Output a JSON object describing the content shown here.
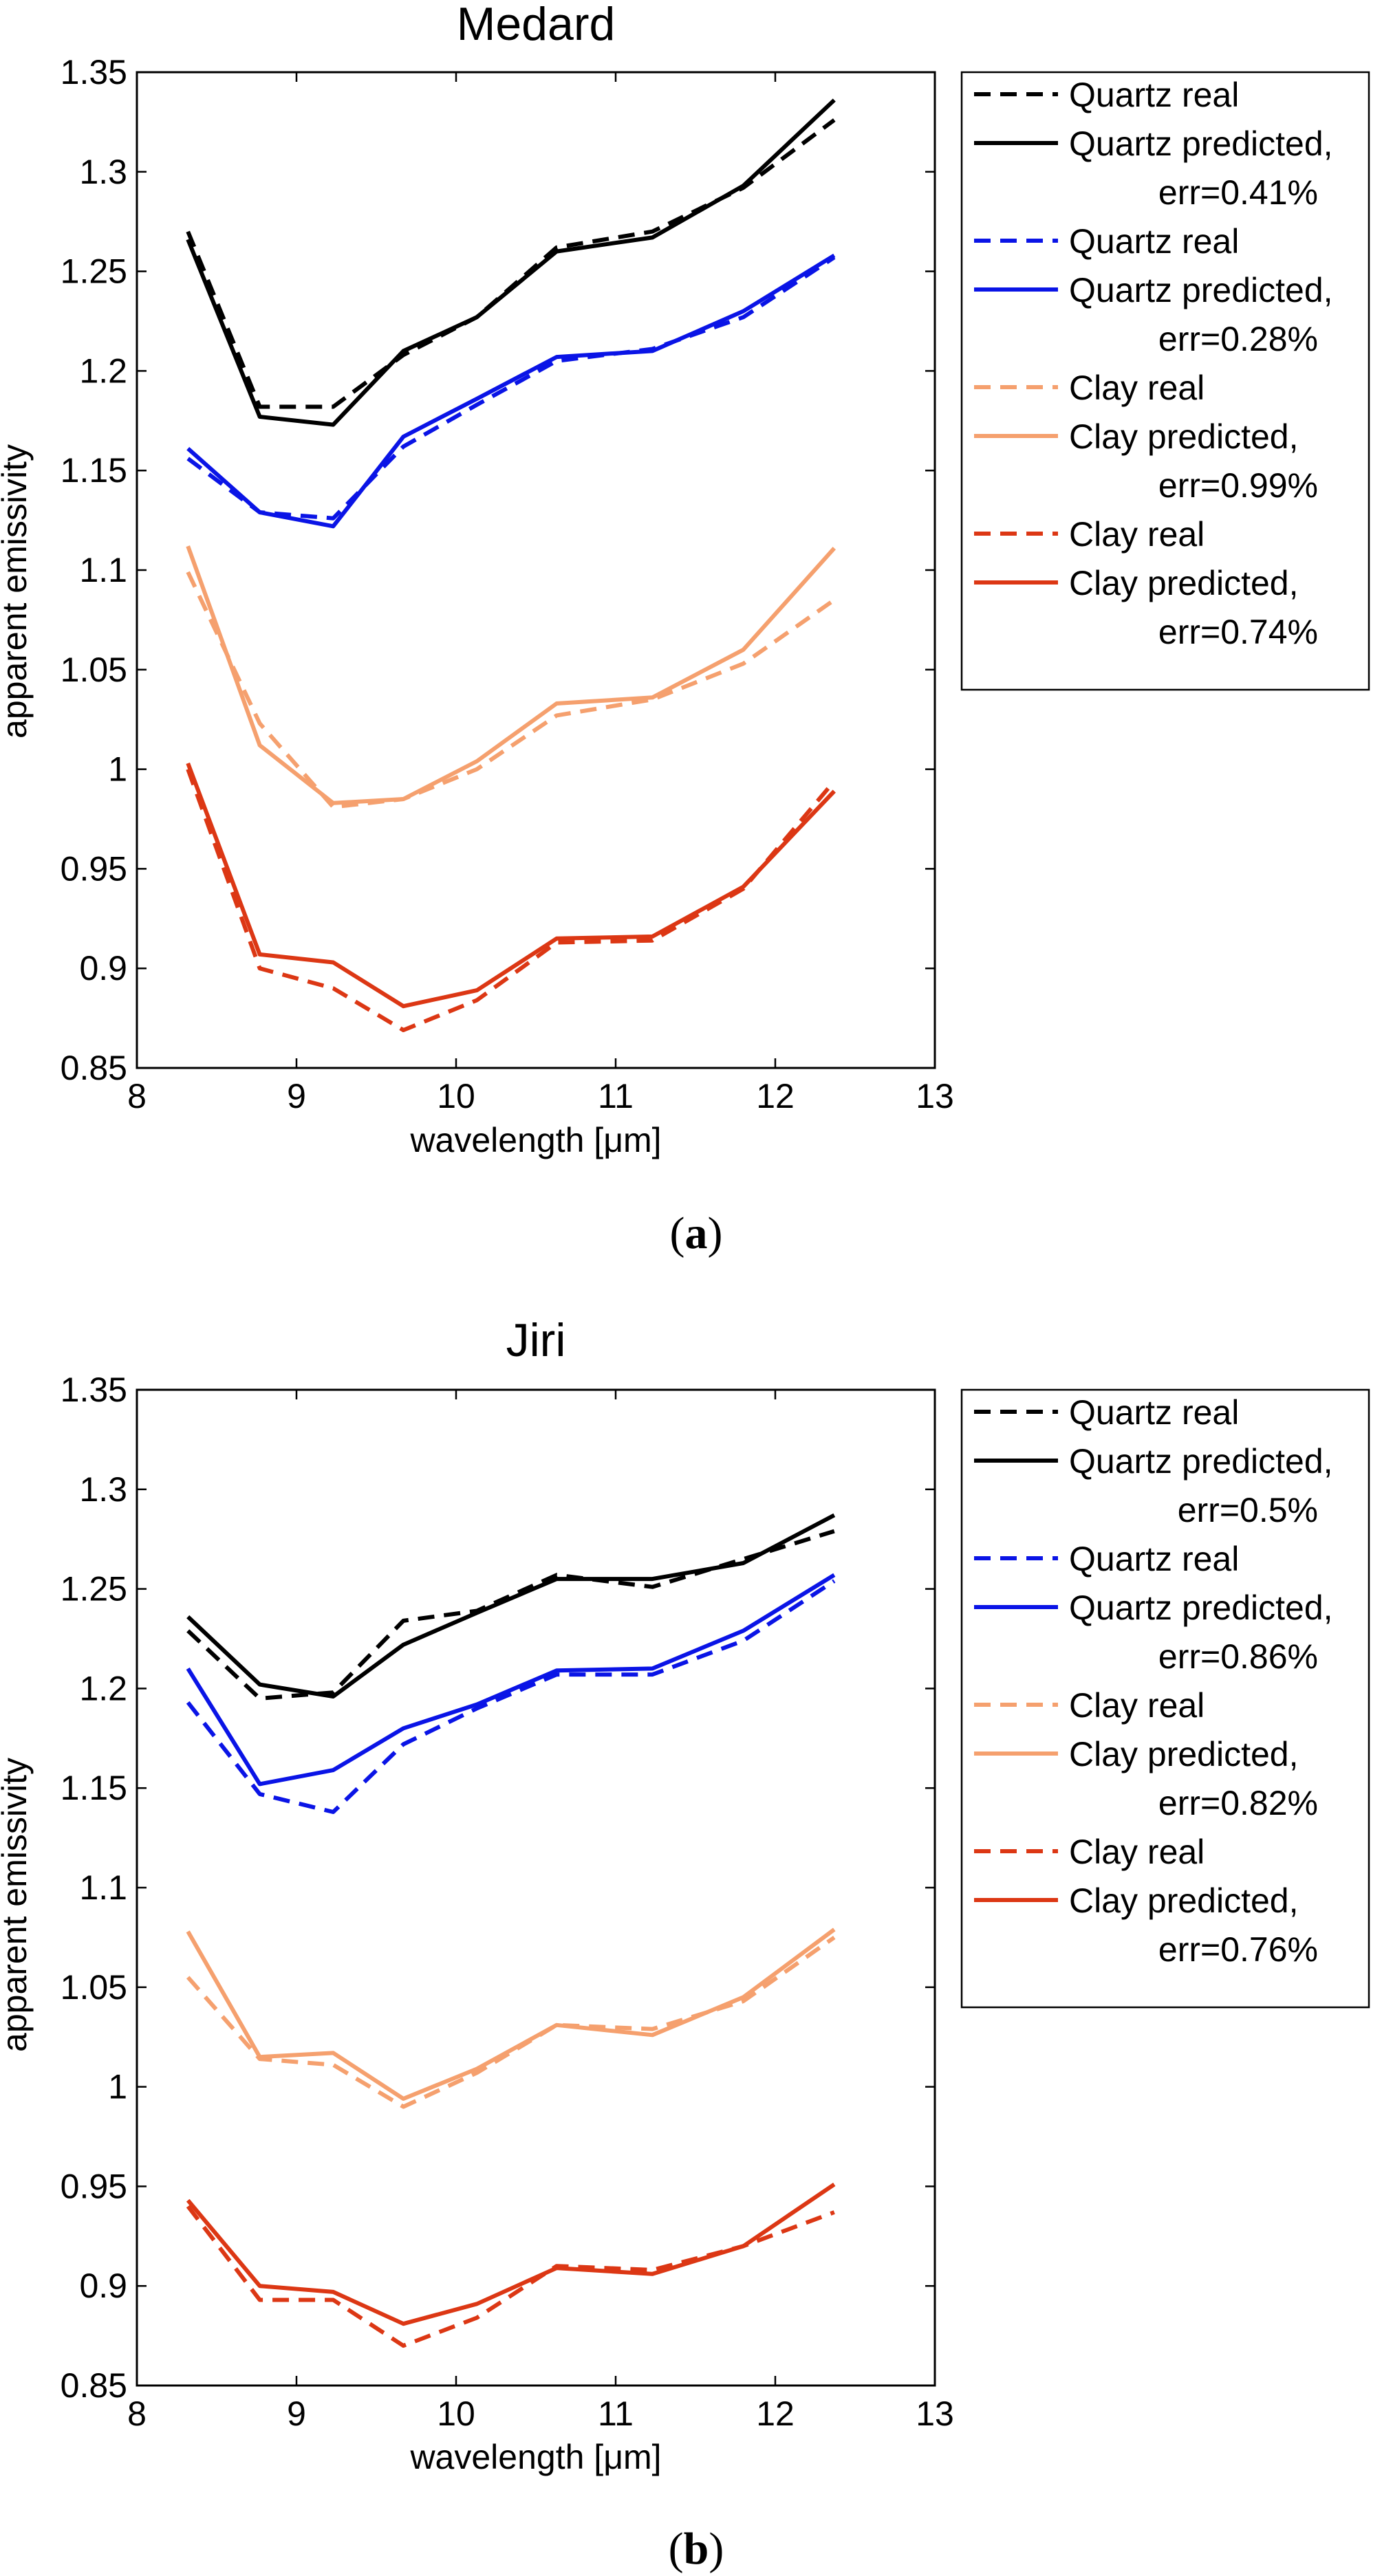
{
  "chart_data": [
    {
      "type": "line",
      "panel_label": "a",
      "title": "Medard",
      "xlabel": "wavelength [μm]",
      "ylabel": "apparent emissivity",
      "xlim": [
        8,
        13
      ],
      "ylim": [
        0.85,
        1.35
      ],
      "xticks": [
        "8",
        "9",
        "10",
        "11",
        "12",
        "13"
      ],
      "yticks": [
        "0.85",
        "0.9",
        "0.95",
        "1",
        "1.05",
        "1.1",
        "1.15",
        "1.2",
        "1.25",
        "1.3",
        "1.35"
      ],
      "grid": false,
      "legend_position": "outside-right",
      "x": [
        8.32,
        8.77,
        9.23,
        9.67,
        10.13,
        10.63,
        11.23,
        11.8,
        12.37
      ],
      "series": [
        {
          "name": "Quartz real",
          "line1": "Quartz real",
          "line2": "",
          "color": "#000000",
          "dashed": true,
          "values": [
            1.27,
            1.182,
            1.182,
            1.208,
            1.227,
            1.262,
            1.27,
            1.292,
            1.326
          ]
        },
        {
          "name": "Quartz predicted, err=0.41%",
          "line1": "Quartz predicted,",
          "line2": "err=0.41%",
          "color": "#000000",
          "dashed": false,
          "values": [
            1.266,
            1.177,
            1.173,
            1.21,
            1.227,
            1.26,
            1.267,
            1.293,
            1.336
          ]
        },
        {
          "name": "Quartz real",
          "line1": "Quartz real",
          "line2": "",
          "color": "#0a14e6",
          "dashed": true,
          "values": [
            1.156,
            1.129,
            1.126,
            1.162,
            1.183,
            1.205,
            1.211,
            1.227,
            1.257
          ]
        },
        {
          "name": "Quartz predicted, err=0.28%",
          "line1": "Quartz predicted,",
          "line2": "err=0.28%",
          "color": "#0a14e6",
          "dashed": false,
          "values": [
            1.161,
            1.129,
            1.122,
            1.167,
            1.186,
            1.207,
            1.21,
            1.23,
            1.258
          ]
        },
        {
          "name": "Clay real",
          "line1": "Clay real",
          "line2": "",
          "color": "#f5a06e",
          "dashed": true,
          "values": [
            1.099,
            1.023,
            0.981,
            0.985,
            1.0,
            1.027,
            1.035,
            1.053,
            1.085
          ]
        },
        {
          "name": "Clay predicted, err=0.99%",
          "line1": "Clay predicted,",
          "line2": "err=0.99%",
          "color": "#f5a06e",
          "dashed": false,
          "values": [
            1.112,
            1.012,
            0.983,
            0.985,
            1.004,
            1.033,
            1.036,
            1.06,
            1.111
          ]
        },
        {
          "name": "Clay real",
          "line1": "Clay real",
          "line2": "",
          "color": "#dc3714",
          "dashed": true,
          "values": [
            1.0,
            0.9,
            0.89,
            0.869,
            0.884,
            0.913,
            0.914,
            0.94,
            0.994
          ]
        },
        {
          "name": "Clay predicted, err=0.74%",
          "line1": "Clay predicted,",
          "line2": "err=0.74%",
          "color": "#dc3714",
          "dashed": false,
          "values": [
            1.003,
            0.907,
            0.903,
            0.881,
            0.889,
            0.915,
            0.916,
            0.941,
            0.989
          ]
        }
      ]
    },
    {
      "type": "line",
      "panel_label": "b",
      "title": "Jiri",
      "xlabel": "wavelength [μm]",
      "ylabel": "apparent emissivity",
      "xlim": [
        8,
        13
      ],
      "ylim": [
        0.85,
        1.35
      ],
      "xticks": [
        "8",
        "9",
        "10",
        "11",
        "12",
        "13"
      ],
      "yticks": [
        "0.85",
        "0.9",
        "0.95",
        "1",
        "1.05",
        "1.1",
        "1.15",
        "1.2",
        "1.25",
        "1.3",
        "1.35"
      ],
      "grid": false,
      "legend_position": "outside-right",
      "x": [
        8.32,
        8.77,
        9.23,
        9.67,
        10.13,
        10.63,
        11.23,
        11.8,
        12.37
      ],
      "series": [
        {
          "name": "Quartz real",
          "line1": "Quartz real",
          "line2": "",
          "color": "#000000",
          "dashed": true,
          "values": [
            1.229,
            1.195,
            1.198,
            1.234,
            1.239,
            1.257,
            1.251,
            1.265,
            1.279
          ]
        },
        {
          "name": "Quartz predicted, err=0.5%",
          "line1": "Quartz predicted,",
          "line2": "err=0.5%",
          "color": "#000000",
          "dashed": false,
          "values": [
            1.236,
            1.202,
            1.196,
            1.222,
            1.238,
            1.255,
            1.255,
            1.263,
            1.287
          ]
        },
        {
          "name": "Quartz real",
          "line1": "Quartz real",
          "line2": "",
          "color": "#0a14e6",
          "dashed": true,
          "values": [
            1.193,
            1.147,
            1.138,
            1.172,
            1.19,
            1.207,
            1.207,
            1.224,
            1.254
          ]
        },
        {
          "name": "Quartz predicted, err=0.86%",
          "line1": "Quartz predicted,",
          "line2": "err=0.86%",
          "color": "#0a14e6",
          "dashed": false,
          "values": [
            1.21,
            1.152,
            1.159,
            1.18,
            1.192,
            1.209,
            1.21,
            1.229,
            1.257
          ]
        },
        {
          "name": "Clay real",
          "line1": "Clay real",
          "line2": "",
          "color": "#f5a06e",
          "dashed": true,
          "values": [
            1.055,
            1.014,
            1.011,
            0.99,
            1.007,
            1.031,
            1.029,
            1.043,
            1.075
          ]
        },
        {
          "name": "Clay predicted, err=0.82%",
          "line1": "Clay predicted,",
          "line2": "err=0.82%",
          "color": "#f5a06e",
          "dashed": false,
          "values": [
            1.078,
            1.015,
            1.017,
            0.994,
            1.009,
            1.031,
            1.026,
            1.045,
            1.079
          ]
        },
        {
          "name": "Clay real",
          "line1": "Clay real",
          "line2": "",
          "color": "#dc3714",
          "dashed": true,
          "values": [
            0.94,
            0.893,
            0.893,
            0.87,
            0.884,
            0.91,
            0.908,
            0.92,
            0.937
          ]
        },
        {
          "name": "Clay predicted, err=0.76%",
          "line1": "Clay predicted,",
          "line2": "err=0.76%",
          "color": "#dc3714",
          "dashed": false,
          "values": [
            0.943,
            0.9,
            0.897,
            0.881,
            0.891,
            0.909,
            0.906,
            0.92,
            0.951
          ]
        }
      ]
    }
  ]
}
